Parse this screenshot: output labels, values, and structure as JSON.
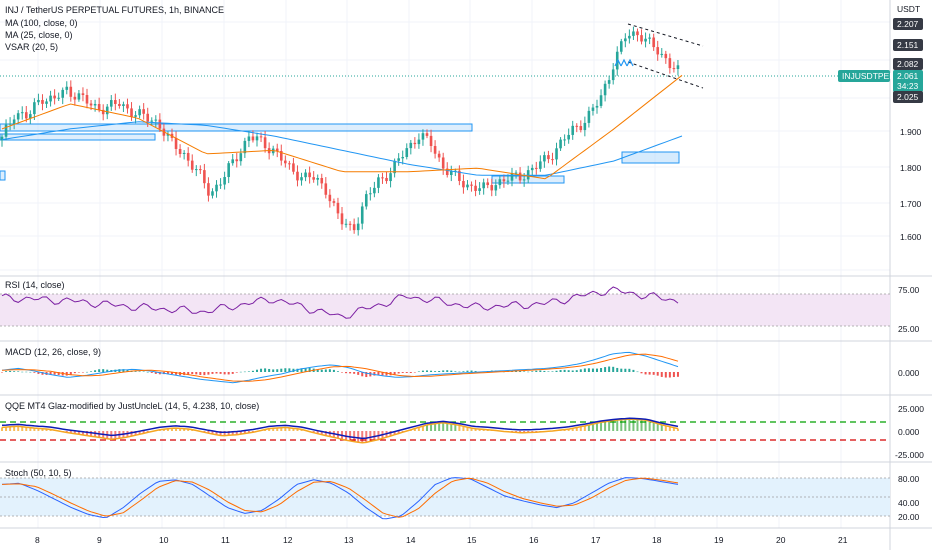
{
  "header": {
    "symbol_line": "INJ / TetherUS PERPETUAL FUTURES, 1h, BINANCE",
    "indicators": [
      "MA (100, close, 0)",
      "MA (25, close, 0)",
      "VSAR (20, 5)"
    ]
  },
  "price_axis": {
    "currency": "USDT",
    "ticks": [
      "1.600",
      "1.700",
      "1.800",
      "1.900"
    ],
    "badges": [
      {
        "text": "2.207",
        "value": 2.207,
        "color": "#363a45"
      },
      {
        "text": "2.151",
        "value": 2.151,
        "color": "#363a45"
      },
      {
        "text": "2.082",
        "value": 2.082,
        "color": "#363a45"
      },
      {
        "text": "2.025",
        "value": 2.025,
        "color": "#363a45"
      }
    ],
    "symbol_tag": "INJUSDTPERP",
    "last_price": "2.061",
    "countdown": "34:23",
    "last_color": "#26a69a"
  },
  "panes": {
    "rsi": {
      "title": "RSI (14, close)",
      "ticks": [
        "75.00",
        "25.00"
      ]
    },
    "macd": {
      "title": "MACD (12, 26, close, 9)",
      "ticks": [
        "0.000"
      ]
    },
    "qqe": {
      "title": "QQE MT4 Glaz-modified by JustUncleL (14, 5, 4.238, 10, close)",
      "ticks": [
        "25.000",
        "0.000",
        "-25.000"
      ]
    },
    "stoch": {
      "title": "Stoch (50, 10, 5)",
      "ticks": [
        "80.00",
        "40.00",
        "20.00"
      ]
    }
  },
  "time_axis": {
    "ticks": [
      "8",
      "9",
      "10",
      "11",
      "12",
      "13",
      "14",
      "15",
      "16",
      "17",
      "18",
      "19",
      "20",
      "21"
    ]
  },
  "colors": {
    "up": "#26a69a",
    "down": "#ef5350",
    "ma25": "#f57c00",
    "ma100": "#2196f3",
    "rsi_line": "#7b1fa2",
    "rsi_band": "#f3e5f5",
    "macd": "#2196f3",
    "signal": "#ff6d00",
    "qqe_line": "#0d1bb5",
    "stoch_k": "#2962ff",
    "stoch_d": "#ff6d00",
    "stoch_band": "#e3f2fd"
  },
  "chart_data": [
    {
      "type": "candlestick",
      "title": "INJ / TetherUS PERPETUAL FUTURES, 1h, BINANCE",
      "x": [
        "8",
        "9",
        "10",
        "11",
        "12",
        "13",
        "14",
        "15",
        "16",
        "17",
        "18"
      ],
      "close_approx": [
        1.96,
        1.98,
        1.88,
        1.72,
        1.8,
        1.62,
        1.85,
        1.75,
        1.76,
        2.0,
        2.06
      ],
      "ma25_approx": [
        1.9,
        1.97,
        1.93,
        1.83,
        1.84,
        1.78,
        1.78,
        1.79,
        1.76,
        1.9,
        2.05
      ],
      "ma100_approx": [
        1.87,
        1.9,
        1.92,
        1.91,
        1.88,
        1.84,
        1.8,
        1.77,
        1.77,
        1.81,
        1.88
      ],
      "ylim": [
        1.55,
        2.23
      ],
      "grid": true
    },
    {
      "type": "line",
      "title": "RSI (14, close)",
      "x": [
        "8",
        "9",
        "10",
        "11",
        "12",
        "13",
        "14",
        "15",
        "16",
        "17",
        "18"
      ],
      "values": [
        60,
        55,
        45,
        38,
        58,
        30,
        62,
        45,
        50,
        72,
        55
      ],
      "ylim": [
        0,
        100
      ],
      "band": [
        25,
        75
      ]
    }
  ]
}
